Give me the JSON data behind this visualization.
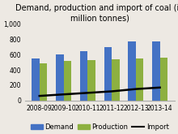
{
  "title": "Demand, production and import of coal (in\nmillion tonnes)",
  "categories": [
    "2008-09",
    "2009-10",
    "2010-11",
    "2011-12",
    "2012-13",
    "2013-14"
  ],
  "demand": [
    550,
    600,
    650,
    695,
    775,
    770
  ],
  "production": [
    490,
    520,
    530,
    535,
    545,
    560
  ],
  "import_vals": [
    60,
    80,
    100,
    120,
    150,
    170
  ],
  "demand_color": "#4472c4",
  "production_color": "#8db040",
  "import_color": "#000000",
  "ylim": [
    0,
    1000
  ],
  "yticks": [
    0,
    200,
    400,
    600,
    800,
    1000
  ],
  "ytick_labels": [
    "0",
    "200",
    "400",
    "600",
    "800",
    "1,000"
  ],
  "bg_color": "#ede9e3",
  "title_fontsize": 7.0,
  "legend_fontsize": 6.0,
  "tick_fontsize": 5.5
}
